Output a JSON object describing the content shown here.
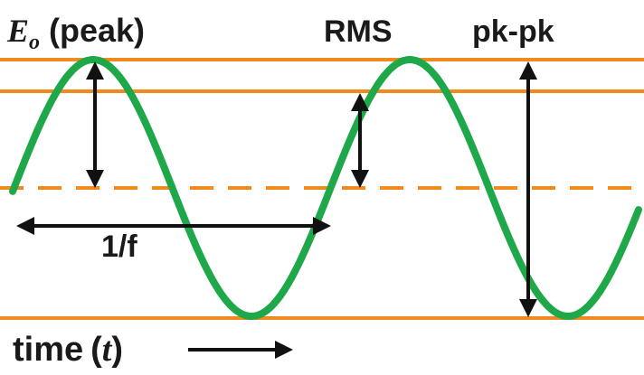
{
  "colors": {
    "wave": "#1fa84a",
    "reference_lines": "#f08a1c",
    "arrows": "#111111",
    "text": "#1a1a1a"
  },
  "labels": {
    "peak_symbol": "E",
    "peak_subscript": "o",
    "peak_text": "(peak)",
    "rms": "RMS",
    "pk_pk": "pk-pk",
    "period": "1/f",
    "time_word": "time",
    "time_open": "(",
    "time_symbol": "t",
    "time_close": ")"
  },
  "wave": {
    "amplitude": 1,
    "rms_level": 0.707,
    "cycles_shown": 1.75
  }
}
